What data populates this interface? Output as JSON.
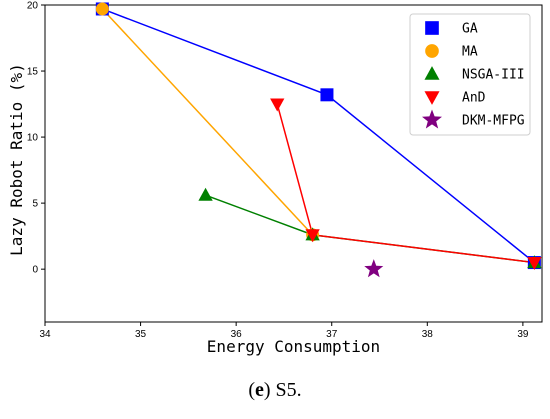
{
  "chart_data": {
    "type": "line",
    "title": "",
    "xlabel": "Energy Consumption",
    "ylabel": "Lazy Robot Ratio (%)",
    "xlim": [
      34,
      39.2
    ],
    "ylim": [
      -4,
      20
    ],
    "xticks": [
      "34",
      "35",
      "36",
      "37",
      "38",
      "39"
    ],
    "yticks": [
      "0",
      "5",
      "10",
      "15",
      "20"
    ],
    "legend_position": "top-right",
    "grid": false,
    "series": [
      {
        "name": "GA",
        "color": "#0000ff",
        "marker": "square",
        "connected": true,
        "points": [
          {
            "x": 34.6,
            "y": 19.7
          },
          {
            "x": 36.95,
            "y": 13.2
          },
          {
            "x": 39.12,
            "y": 0.5
          }
        ]
      },
      {
        "name": "MA",
        "color": "#ffa500",
        "marker": "circle",
        "connected": true,
        "points": [
          {
            "x": 34.6,
            "y": 19.7
          },
          {
            "x": 36.8,
            "y": 2.6
          }
        ]
      },
      {
        "name": "NSGA-III",
        "color": "#008000",
        "marker": "triangle-up",
        "connected": true,
        "points": [
          {
            "x": 35.68,
            "y": 5.6
          },
          {
            "x": 36.8,
            "y": 2.6
          },
          {
            "x": 39.12,
            "y": 0.5
          }
        ]
      },
      {
        "name": "AnD",
        "color": "#ff0000",
        "marker": "triangle-down",
        "connected": true,
        "points": [
          {
            "x": 36.43,
            "y": 12.5
          },
          {
            "x": 36.8,
            "y": 2.6
          },
          {
            "x": 39.12,
            "y": 0.5
          }
        ]
      },
      {
        "name": "DKM-MFPG",
        "color": "#800080",
        "marker": "star",
        "connected": false,
        "points": [
          {
            "x": 37.44,
            "y": 0.0
          }
        ]
      }
    ]
  },
  "caption": {
    "label": "(e)",
    "label_letter": "e",
    "text": "S5."
  }
}
